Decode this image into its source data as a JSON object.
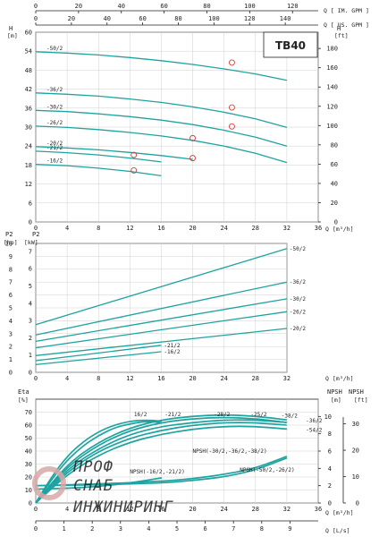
{
  "model_label": "TB40",
  "watermark": {
    "line1": "ПРОФ",
    "line2": "СНАБ",
    "line3": "ИНЖИНИРИНГ"
  },
  "top_axes": {
    "q_imp": {
      "label": "Q [ IM. GPM ]",
      "ticks": [
        "0",
        "20",
        "40",
        "60",
        "80",
        "100",
        "120"
      ]
    },
    "q_us": {
      "label": "Q [ US. GPM ]",
      "ticks": [
        "0",
        "20",
        "40",
        "60",
        "80",
        "100",
        "120",
        "140"
      ]
    }
  },
  "chart_data": [
    {
      "type": "line",
      "name": "head",
      "ylabel_left": "H",
      "unit_left": "[m]",
      "ylabel_right": "H",
      "unit_right": "[ft]",
      "xlabel": "Q",
      "xunit": "[m³/h]",
      "xlim": [
        0,
        36
      ],
      "ylim": [
        0,
        60
      ],
      "x_ticks": [
        "0",
        "4",
        "8",
        "12",
        "16",
        "20",
        "24",
        "28",
        "32",
        "36"
      ],
      "y_ticks_left": [
        "0",
        "6",
        "12",
        "18",
        "24",
        "30",
        "36",
        "42",
        "48",
        "54",
        "60"
      ],
      "y_ticks_right": [
        "0",
        "20",
        "40",
        "60",
        "80",
        "100",
        "120",
        "140",
        "160",
        "180"
      ],
      "series": [
        {
          "name": "-50/2",
          "x": [
            0,
            4,
            8,
            12,
            16,
            20,
            24,
            28,
            32
          ],
          "y": [
            53.8,
            53.4,
            52.8,
            52.0,
            51.0,
            49.8,
            48.4,
            46.8,
            44.8
          ]
        },
        {
          "name": "-36/2",
          "x": [
            0,
            4,
            8,
            12,
            16,
            20,
            24,
            28,
            32
          ],
          "y": [
            40.8,
            40.4,
            39.8,
            38.9,
            37.8,
            36.4,
            34.7,
            32.6,
            29.9
          ]
        },
        {
          "name": "-30/2",
          "x": [
            0,
            4,
            8,
            12,
            16,
            20,
            24,
            28,
            32
          ],
          "y": [
            35.3,
            34.9,
            34.2,
            33.3,
            32.2,
            30.8,
            29.0,
            26.8,
            24.0
          ]
        },
        {
          "name": "-26/2",
          "x": [
            0,
            4,
            8,
            12,
            16,
            20,
            24,
            28,
            32
          ],
          "y": [
            30.3,
            29.9,
            29.2,
            28.3,
            27.2,
            25.8,
            24.0,
            21.7,
            18.8
          ]
        },
        {
          "name": "-20/2",
          "x": [
            0,
            4,
            8,
            12,
            16,
            20
          ],
          "y": [
            23.8,
            23.4,
            22.8,
            22.0,
            21.0,
            19.8
          ]
        },
        {
          "name": "-21/2",
          "x": [
            0,
            4,
            8,
            12,
            16
          ],
          "y": [
            22.4,
            21.9,
            21.2,
            20.2,
            19.0
          ]
        },
        {
          "name": "-16/2",
          "x": [
            0,
            4,
            8,
            12,
            16
          ],
          "y": [
            18.2,
            17.8,
            17.0,
            16.0,
            14.6
          ]
        }
      ],
      "markers": [
        {
          "x": 25,
          "y": 50.4
        },
        {
          "x": 25,
          "y": 36.2
        },
        {
          "x": 25,
          "y": 30.2
        },
        {
          "x": 20,
          "y": 26.5
        },
        {
          "x": 20,
          "y": 20.2
        },
        {
          "x": 12.5,
          "y": 21.2
        },
        {
          "x": 12.5,
          "y": 16.3
        }
      ]
    },
    {
      "type": "line",
      "name": "power",
      "ylabel_left": "P2",
      "unit_left": "[hp]",
      "ylabel_right": "P2",
      "unit_right": "[kW]",
      "xlabel": "Q",
      "xunit": "[m³/h]",
      "xlim": [
        0,
        32
      ],
      "ylim_hp": [
        0,
        10
      ],
      "ylim_kw": [
        0,
        7
      ],
      "x_ticks": [
        "0",
        "4",
        "8",
        "12",
        "16",
        "20",
        "24",
        "28",
        "32"
      ],
      "y_ticks_left": [
        "0",
        "1",
        "2",
        "3",
        "4",
        "5",
        "6",
        "7",
        "8",
        "9",
        "10"
      ],
      "y_ticks_right": [
        "0",
        "1",
        "2",
        "3",
        "4",
        "5",
        "6",
        "7"
      ],
      "series": [
        {
          "name": "-50/2",
          "x": [
            0,
            32
          ],
          "y": [
            3.7,
            9.6
          ]
        },
        {
          "name": "-36/2",
          "x": [
            0,
            32
          ],
          "y": [
            2.9,
            7.0
          ]
        },
        {
          "name": "-30/2",
          "x": [
            0,
            32
          ],
          "y": [
            2.4,
            5.7
          ]
        },
        {
          "name": "-26/2",
          "x": [
            0,
            32
          ],
          "y": [
            1.9,
            4.7
          ]
        },
        {
          "name": "-20/2",
          "x": [
            0,
            32
          ],
          "y": [
            1.3,
            3.4
          ]
        },
        {
          "name": "-21/2",
          "x": [
            0,
            16
          ],
          "y": [
            0.9,
            2.1
          ]
        },
        {
          "name": "-16/2",
          "x": [
            0,
            16
          ],
          "y": [
            0.6,
            1.6
          ]
        }
      ]
    },
    {
      "type": "line",
      "name": "efficiency_npsh",
      "ylabel_left": "Eta",
      "unit_left": "[%]",
      "ylabel_right": "NPSH",
      "unit_right_m": "[m]",
      "unit_right_ft": "[ft]",
      "xlabel": "Q",
      "xunit": "[m³/h]",
      "xlabel2": "Q",
      "xunit2": "[L/s]",
      "xlim": [
        0,
        36
      ],
      "ylim": [
        0,
        80
      ],
      "x_ticks": [
        "0",
        "4",
        "8",
        "12",
        "16",
        "20",
        "24",
        "28",
        "32",
        "36"
      ],
      "x_ticks_ls": [
        "0",
        "1",
        "2",
        "3",
        "4",
        "5",
        "6",
        "7",
        "8",
        "9"
      ],
      "y_ticks_left": [
        "0",
        "10",
        "20",
        "30",
        "40",
        "50",
        "60",
        "70"
      ],
      "y_ticks_npsh_m": [
        "0",
        "2",
        "4",
        "6",
        "8",
        "10"
      ],
      "y_ticks_npsh_ft": [
        "0",
        "10",
        "20",
        "30"
      ],
      "series": [
        {
          "name": "16/2",
          "x": [
            0,
            2,
            4,
            6,
            8,
            10,
            12,
            14,
            16
          ],
          "y": [
            0,
            20,
            36,
            47,
            55,
            60,
            63,
            64,
            63
          ]
        },
        {
          "name": "-21/2",
          "x": [
            0,
            2,
            4,
            6,
            8,
            10,
            12,
            14,
            16
          ],
          "y": [
            0,
            18,
            33,
            44,
            52,
            58,
            61,
            63,
            62
          ]
        },
        {
          "name": "-28/2",
          "x": [
            0,
            4,
            8,
            12,
            16,
            20,
            24,
            28,
            32
          ],
          "y": [
            0,
            30,
            47,
            58,
            64,
            67,
            68,
            67,
            64
          ]
        },
        {
          "name": "-25/2",
          "x": [
            0,
            4,
            8,
            12,
            16,
            20,
            24,
            28,
            32
          ],
          "y": [
            0,
            28,
            45,
            56,
            62,
            65,
            66,
            65,
            62
          ]
        },
        {
          "name": "-38/2",
          "x": [
            0,
            4,
            8,
            12,
            16,
            20,
            24,
            28,
            32
          ],
          "y": [
            0,
            26,
            42,
            53,
            59,
            62,
            64,
            64,
            62
          ]
        },
        {
          "name": "-36/2",
          "x": [
            0,
            4,
            8,
            12,
            16,
            20,
            24,
            28,
            32
          ],
          "y": [
            0,
            24,
            40,
            50,
            56,
            60,
            62,
            62,
            60
          ]
        },
        {
          "name": "-54/2",
          "x": [
            0,
            4,
            8,
            12,
            16,
            20,
            24,
            28,
            32
          ],
          "y": [
            0,
            22,
            37,
            47,
            53,
            57,
            59,
            59,
            57
          ]
        }
      ],
      "npsh_series": [
        {
          "name": "NPSH(-16/2,-21/2)",
          "x": [
            0,
            4,
            8,
            12,
            16
          ],
          "y_m": [
            1.6,
            1.7,
            1.9,
            2.3,
            2.9
          ]
        },
        {
          "name": "NPSH(-30/2,-36/2,-38/2)",
          "x": [
            0,
            8,
            16,
            20,
            24,
            28,
            32
          ],
          "y_m": [
            2.0,
            2.1,
            2.3,
            2.6,
            3.0,
            3.8,
            5.2
          ]
        },
        {
          "name": "NPSH(-50/2,-26/2)",
          "x": [
            0,
            8,
            16,
            20,
            24,
            28,
            32
          ],
          "y_m": [
            2.0,
            2.2,
            2.5,
            2.8,
            3.3,
            4.0,
            5.4
          ]
        }
      ]
    }
  ]
}
